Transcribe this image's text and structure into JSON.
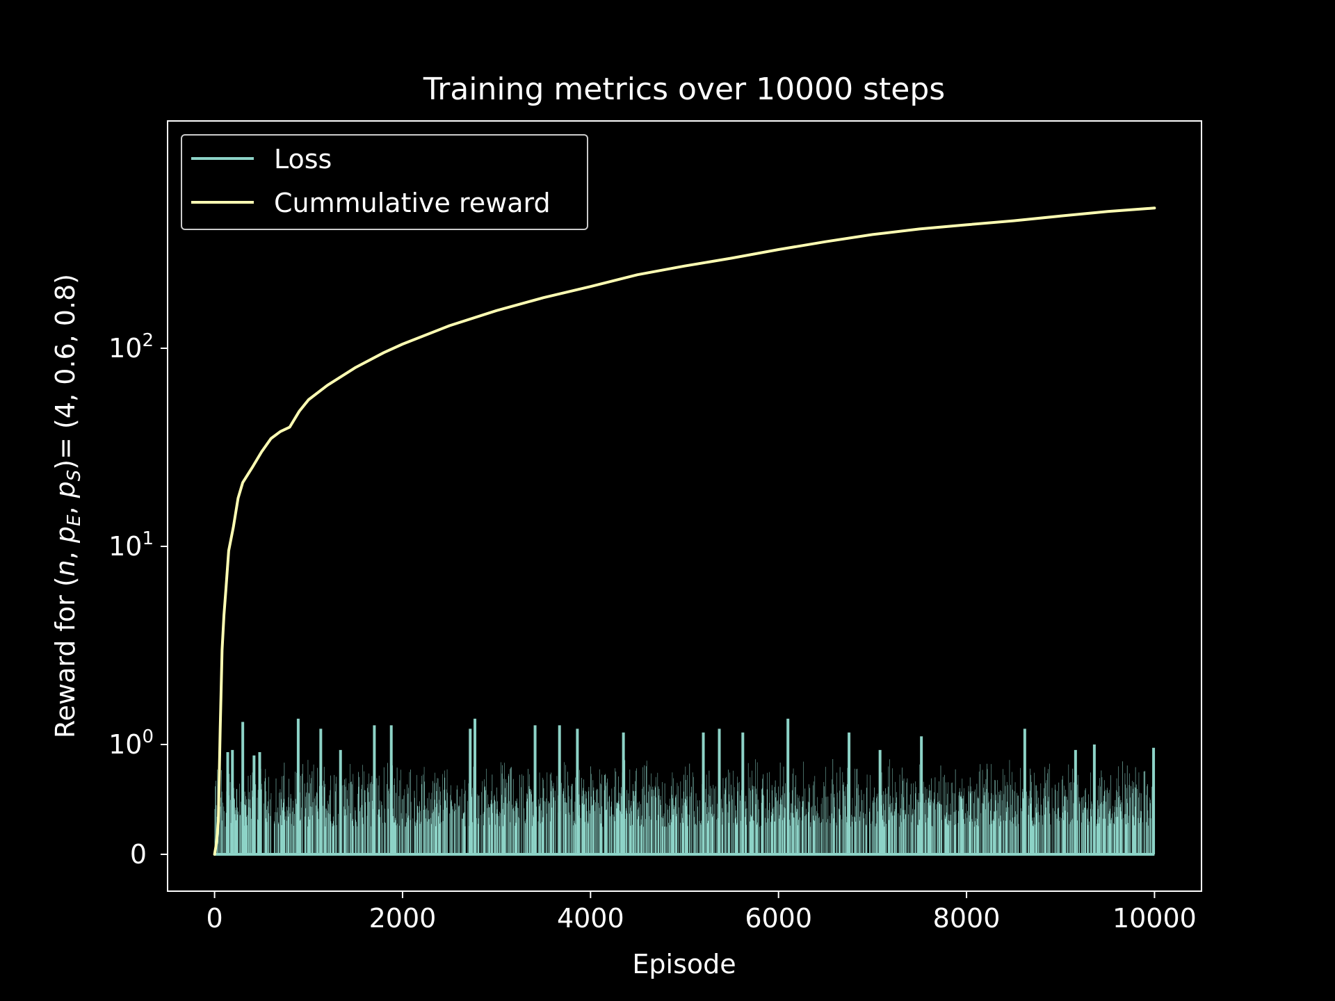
{
  "chart_data": {
    "type": "line",
    "title": "Training metrics over 10000 steps",
    "xlabel": "Episode",
    "ylabel": {
      "prefix": "Reward for (",
      "n": "n",
      "p": "p",
      "sub_e": "E",
      "sub_s": "S",
      "suffix": ")= (4, 0.6, 0.8)"
    },
    "xlim": [
      -500,
      10500
    ],
    "x_ticks": [
      0,
      2000,
      4000,
      6000,
      8000,
      10000
    ],
    "x_tick_labels": [
      "0",
      "2000",
      "4000",
      "6000",
      "8000",
      "10000"
    ],
    "y_scale": "symlog",
    "y_ticks": [
      0,
      1,
      10,
      100
    ],
    "y_tick_labels": [
      {
        "base": "0",
        "exp": ""
      },
      {
        "base": "10",
        "exp": "0"
      },
      {
        "base": "10",
        "exp": "1"
      },
      {
        "base": "10",
        "exp": "2"
      }
    ],
    "grid": false,
    "legend_position": "top-left",
    "series": [
      {
        "name": "Loss",
        "color": "#8dd3c7",
        "style": "dense spikes",
        "x_range": [
          0,
          10000
        ],
        "baseline": 0,
        "typical_peak_range": [
          0.25,
          0.9
        ],
        "max_peak": 1.35,
        "peaks": [
          [
            140,
            0.93
          ],
          [
            190,
            0.95
          ],
          [
            300,
            1.3
          ],
          [
            420,
            0.9
          ],
          [
            480,
            0.93
          ],
          [
            890,
            1.35
          ],
          [
            1130,
            1.2
          ],
          [
            1340,
            0.95
          ],
          [
            1700,
            1.25
          ],
          [
            1880,
            1.25
          ],
          [
            2720,
            1.2
          ],
          [
            2770,
            1.35
          ],
          [
            3410,
            1.25
          ],
          [
            3670,
            1.25
          ],
          [
            3860,
            1.2
          ],
          [
            4350,
            1.15
          ],
          [
            5200,
            1.15
          ],
          [
            5370,
            1.2
          ],
          [
            5620,
            1.15
          ],
          [
            6100,
            1.35
          ],
          [
            6750,
            1.15
          ],
          [
            7080,
            0.95
          ],
          [
            7520,
            1.1
          ],
          [
            8620,
            1.2
          ],
          [
            9160,
            0.95
          ],
          [
            9360,
            1.0
          ],
          [
            9990,
            0.97
          ]
        ]
      },
      {
        "name": "Cummulative reward",
        "color": "#ffffb3",
        "x": [
          0,
          20,
          40,
          60,
          80,
          100,
          120,
          150,
          200,
          250,
          300,
          400,
          500,
          600,
          700,
          800,
          900,
          1000,
          1200,
          1500,
          1800,
          2000,
          2500,
          3000,
          3500,
          4000,
          4500,
          5000,
          5500,
          6000,
          6500,
          7000,
          7500,
          8000,
          8500,
          9000,
          9500,
          10000
        ],
        "y": [
          0,
          0.1,
          0.3,
          1.2,
          3.0,
          4.5,
          6.0,
          9.5,
          12.5,
          17.5,
          21.0,
          25.0,
          30.0,
          35.0,
          38.0,
          40.0,
          48.0,
          55.0,
          65.0,
          80.0,
          95.0,
          105.0,
          130.0,
          155.0,
          180.0,
          205.0,
          235.0,
          260.0,
          285.0,
          315.0,
          345.0,
          375.0,
          400.0,
          420.0,
          440.0,
          465.0,
          490.0,
          510.0
        ]
      }
    ]
  }
}
